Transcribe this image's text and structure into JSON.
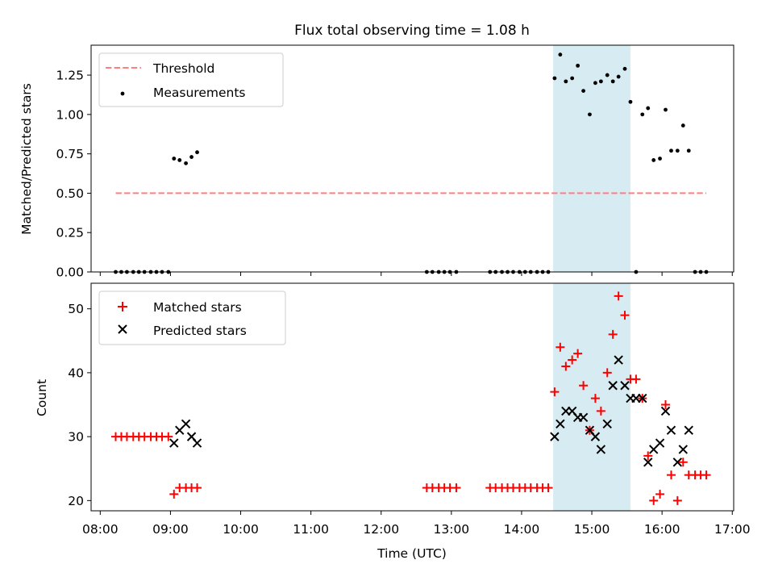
{
  "title": "Flux total observing time = 1.08 h",
  "colors": {
    "threshold": "#ff7f7f",
    "measure": "#000000",
    "matched": "#ff0000",
    "predicted": "#000000",
    "band": "#add8e6"
  },
  "chart_data": [
    {
      "type": "scatter",
      "panel": "top",
      "ylabel": "Matched/Predicted stars",
      "xlabel": "",
      "ylim": [
        0,
        1.44
      ],
      "yticks": [
        "0.00",
        "0.25",
        "0.50",
        "0.75",
        "1.00",
        "1.25"
      ],
      "ytick_values": [
        0,
        0.25,
        0.5,
        0.75,
        1.0,
        1.25
      ],
      "x_range_hours": [
        7.87,
        17.02
      ],
      "highlight_band_hours": [
        14.45,
        15.55
      ],
      "legend": {
        "placement": "upper-left",
        "entries": [
          "Threshold",
          "Measurements"
        ]
      },
      "series": [
        {
          "name": "Threshold",
          "kind": "dashed-line",
          "x": [
            8.22,
            16.63
          ],
          "y": [
            0.5,
            0.5
          ]
        },
        {
          "name": "Measurements",
          "kind": "dots",
          "x": [
            8.22,
            8.3,
            8.38,
            8.47,
            8.55,
            8.63,
            8.72,
            8.8,
            8.88,
            8.97,
            9.05,
            9.13,
            9.22,
            9.3,
            9.38,
            12.65,
            12.73,
            12.82,
            12.9,
            12.98,
            13.07,
            13.55,
            13.63,
            13.72,
            13.8,
            13.88,
            13.97,
            14.05,
            14.13,
            14.22,
            14.3,
            14.38,
            14.47,
            14.55,
            14.63,
            14.72,
            14.8,
            14.88,
            14.97,
            15.05,
            15.13,
            15.22,
            15.3,
            15.38,
            15.47,
            15.55,
            15.63,
            15.72,
            15.8,
            15.88,
            15.97,
            16.05,
            16.13,
            16.22,
            16.3,
            16.38,
            16.47,
            16.55,
            16.63
          ],
          "y": [
            0,
            0,
            0,
            0,
            0,
            0,
            0,
            0,
            0,
            0,
            0.72,
            0.71,
            0.69,
            0.73,
            0.76,
            0,
            0,
            0,
            0,
            0,
            0,
            0,
            0,
            0,
            0,
            0,
            0,
            0,
            0,
            0,
            0,
            0,
            1.23,
            1.38,
            1.21,
            1.23,
            1.31,
            1.15,
            1.0,
            1.2,
            1.21,
            1.25,
            1.21,
            1.24,
            1.29,
            1.08,
            0,
            1.0,
            1.04,
            0.71,
            0.72,
            1.03,
            0.77,
            0.77,
            0.93,
            0.77,
            0,
            0,
            0
          ]
        }
      ]
    },
    {
      "type": "scatter",
      "panel": "bottom",
      "ylabel": "Count",
      "xlabel": "Time (UTC)",
      "ylim": [
        18.4,
        54.0
      ],
      "yticks": [
        "20",
        "30",
        "40",
        "50"
      ],
      "ytick_values": [
        20,
        30,
        40,
        50
      ],
      "xticks": [
        "08:00",
        "09:00",
        "10:00",
        "11:00",
        "12:00",
        "13:00",
        "14:00",
        "15:00",
        "16:00",
        "17:00"
      ],
      "xtick_hours": [
        8,
        9,
        10,
        11,
        12,
        13,
        14,
        15,
        16,
        17
      ],
      "x_range_hours": [
        7.87,
        17.02
      ],
      "highlight_band_hours": [
        14.45,
        15.55
      ],
      "legend": {
        "placement": "upper-left",
        "entries": [
          "Matched stars",
          "Predicted stars"
        ]
      },
      "series": [
        {
          "name": "Matched stars",
          "marker": "plus",
          "x": [
            8.22,
            8.3,
            8.38,
            8.47,
            8.55,
            8.63,
            8.72,
            8.8,
            8.88,
            8.97,
            9.05,
            9.13,
            9.22,
            9.3,
            9.38,
            12.65,
            12.73,
            12.82,
            12.9,
            12.98,
            13.07,
            13.55,
            13.63,
            13.72,
            13.8,
            13.88,
            13.97,
            14.05,
            14.13,
            14.22,
            14.3,
            14.38,
            14.47,
            14.55,
            14.63,
            14.72,
            14.8,
            14.88,
            14.97,
            15.05,
            15.13,
            15.22,
            15.3,
            15.38,
            15.47,
            15.55,
            15.63,
            15.72,
            15.8,
            15.88,
            15.97,
            16.05,
            16.13,
            16.22,
            16.3,
            16.38,
            16.47,
            16.55,
            16.63
          ],
          "y": [
            30,
            30,
            30,
            30,
            30,
            30,
            30,
            30,
            30,
            30,
            21,
            22,
            22,
            22,
            22,
            22,
            22,
            22,
            22,
            22,
            22,
            22,
            22,
            22,
            22,
            22,
            22,
            22,
            22,
            22,
            22,
            22,
            37,
            44,
            41,
            42,
            43,
            38,
            31,
            36,
            34,
            40,
            46,
            52,
            49,
            39,
            39,
            36,
            27,
            20,
            21,
            35,
            24,
            20,
            26,
            24,
            24,
            24,
            24
          ]
        },
        {
          "name": "Predicted stars",
          "marker": "x",
          "x": [
            9.05,
            9.13,
            9.22,
            9.3,
            9.38,
            14.47,
            14.55,
            14.63,
            14.72,
            14.8,
            14.88,
            14.97,
            15.05,
            15.13,
            15.22,
            15.3,
            15.38,
            15.47,
            15.55,
            15.63,
            15.72,
            15.8,
            15.88,
            15.97,
            16.05,
            16.13,
            16.22,
            16.3,
            16.38
          ],
          "y": [
            29,
            31,
            32,
            30,
            29,
            30,
            32,
            34,
            34,
            33,
            33,
            31,
            30,
            28,
            32,
            38,
            42,
            38,
            36,
            36,
            36,
            26,
            28,
            29,
            34,
            31,
            26,
            28,
            31
          ]
        }
      ]
    }
  ]
}
